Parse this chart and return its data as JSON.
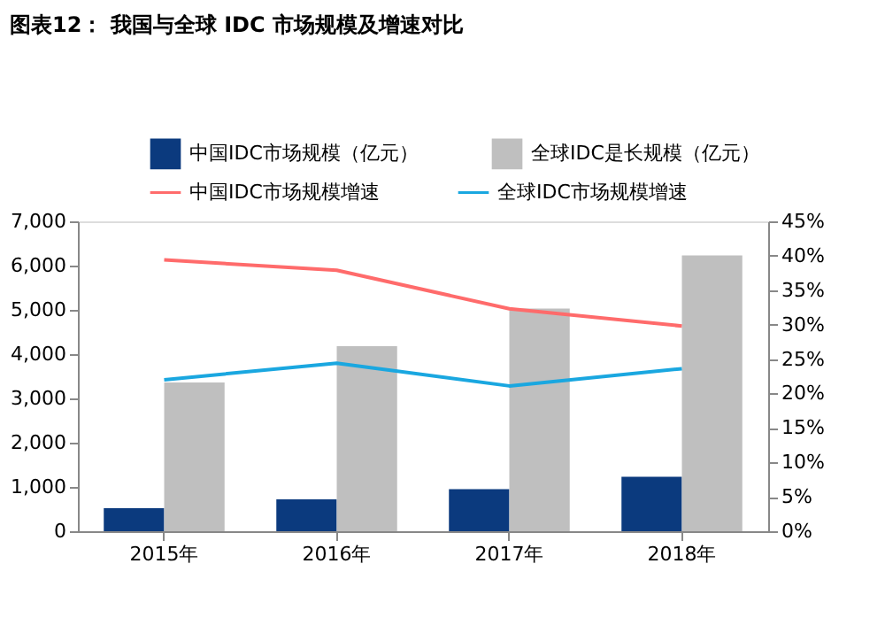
{
  "chart_data": {
    "type": "bar",
    "title": "图表12： 我国与全球 IDC 市场规模及增速对比",
    "categories": [
      "2015年",
      "2016年",
      "2017年",
      "2018年"
    ],
    "series": [
      {
        "name": "中国IDC市场规模（亿元）",
        "color": "#0b3a7e",
        "values": [
          520,
          720,
          950,
          1230
        ]
      },
      {
        "name": "全球IDC是长规模（亿元）",
        "color": "#bfbfbf",
        "values": [
          3360,
          4180,
          5030,
          6230
        ]
      },
      {
        "name": "中国IDC市场规模增速",
        "type": "line",
        "axis": "y2",
        "color": "#ff6b6b",
        "values": [
          39.4,
          37.9,
          32.3,
          29.8
        ]
      },
      {
        "name": "全球IDC市场规模增速",
        "type": "line",
        "axis": "y2",
        "color": "#1aa7e0",
        "values": [
          22.0,
          24.4,
          21.1,
          23.6
        ]
      }
    ],
    "ylim": [
      0,
      7000
    ],
    "yticks": [
      0,
      {
        "value": 1000,
        "label": "1,000"
      },
      {
        "value": 2000,
        "label": "2,000"
      },
      {
        "value": 3000,
        "label": "3,000"
      },
      {
        "value": 4000,
        "label": "4,000"
      },
      {
        "value": 5000,
        "label": "5,000"
      },
      {
        "value": 6000,
        "label": "6,000"
      },
      {
        "value": 7000,
        "label": "7,000"
      }
    ],
    "y2lim": [
      0,
      45
    ],
    "y2ticks": [
      {
        "value": 0,
        "label": "0%"
      },
      {
        "value": 5,
        "label": "5%"
      },
      {
        "value": 10,
        "label": "10%"
      },
      {
        "value": 15,
        "label": "15%"
      },
      {
        "value": 20,
        "label": "20%"
      },
      {
        "value": 25,
        "label": "25%"
      },
      {
        "value": 30,
        "label": "30%"
      },
      {
        "value": 35,
        "label": "35%"
      },
      {
        "value": 40,
        "label": "40%"
      },
      {
        "value": 45,
        "label": "45%"
      }
    ],
    "grid": false,
    "legend": "top"
  }
}
